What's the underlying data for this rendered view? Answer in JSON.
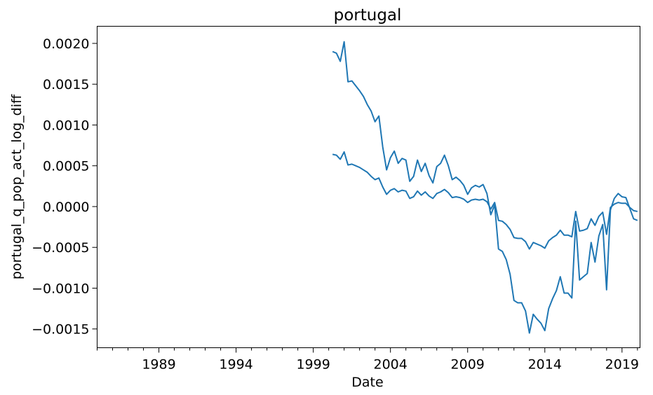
{
  "chart_data": {
    "type": "line",
    "title": "portugal",
    "xlabel": "Date",
    "ylabel": "portugal_q_pop_act_log_diff",
    "xlim": [
      "1985-01-01",
      "2020-03-01"
    ],
    "ylim": [
      -0.00173,
      0.00221
    ],
    "x_ticks": [
      "1989",
      "1994",
      "1999",
      "2004",
      "2009",
      "2014",
      "2019"
    ],
    "y_ticks": [
      "0.0020",
      "0.0015",
      "0.0010",
      "0.0005",
      "0.0000",
      "−0.0005",
      "−0.0010",
      "−0.0015"
    ],
    "y_tick_values": [
      0.002,
      0.0015,
      0.001,
      0.0005,
      0.0,
      -0.0005,
      -0.001,
      -0.0015
    ],
    "grid": false,
    "series": [
      {
        "color": "#1f77b4",
        "x": [
          "2000-04",
          "2000-07",
          "2000-10",
          "2001-01",
          "2001-04",
          "2001-07",
          "2001-10",
          "2002-01",
          "2002-04",
          "2002-07",
          "2002-10",
          "2003-01",
          "2003-04",
          "2003-07",
          "2003-10",
          "2004-01",
          "2004-04",
          "2004-07",
          "2004-10",
          "2005-01",
          "2005-04",
          "2005-07",
          "2005-10",
          "2006-01",
          "2006-04",
          "2006-07",
          "2006-10",
          "2007-01",
          "2007-04",
          "2007-07",
          "2007-10",
          "2008-01",
          "2008-04",
          "2008-07",
          "2008-10",
          "2009-01",
          "2009-04",
          "2009-07",
          "2009-10",
          "2010-01",
          "2010-04",
          "2010-07",
          "2010-10",
          "2011-01",
          "2011-04",
          "2011-07",
          "2011-10",
          "2012-01",
          "2012-04",
          "2012-07",
          "2012-10",
          "2013-01",
          "2013-04",
          "2013-07",
          "2013-10",
          "2014-01",
          "2014-04",
          "2014-07",
          "2014-10",
          "2015-01",
          "2015-04",
          "2015-07",
          "2015-10",
          "2016-01",
          "2016-04",
          "2016-07",
          "2016-10",
          "2017-01",
          "2017-04",
          "2017-07",
          "2017-10",
          "2018-01",
          "2018-04",
          "2018-07",
          "2018-10",
          "2019-01",
          "2019-04",
          "2019-07",
          "2019-10",
          "2020-01"
        ],
        "values": [
          0.0019,
          0.00188,
          0.00178,
          0.00202,
          0.00153,
          0.00154,
          0.00148,
          0.00142,
          0.00135,
          0.00125,
          0.00117,
          0.00104,
          0.00111,
          0.00073,
          0.00045,
          0.0006,
          0.00068,
          0.00053,
          0.00059,
          0.00057,
          0.00031,
          0.00037,
          0.00057,
          0.00043,
          0.00053,
          0.00038,
          0.00029,
          0.00049,
          0.00053,
          0.00063,
          0.0005,
          0.00033,
          0.00036,
          0.00032,
          0.00026,
          0.00015,
          0.00023,
          0.00026,
          0.00024,
          0.00027,
          0.00016,
          -0.0001,
          2e-05,
          -0.00052,
          -0.00055,
          -0.00065,
          -0.00083,
          -0.00115,
          -0.00118,
          -0.00118,
          -0.00128,
          -0.00155,
          -0.00132,
          -0.00138,
          -0.00143,
          -0.00152,
          -0.00125,
          -0.00113,
          -0.00103,
          -0.00086,
          -0.00106,
          -0.00106,
          -0.00112,
          -0.00018,
          -0.0009,
          -0.00086,
          -0.00082,
          -0.00044,
          -0.00068,
          -0.00036,
          -0.00022,
          -0.00102,
          -4e-05,
          0.0001,
          0.00016,
          0.00012,
          0.00011,
          -2e-05,
          -0.00015,
          -0.00017
        ]
      },
      {
        "color": "#1f77b4",
        "x": [
          "2000-04",
          "2000-07",
          "2000-10",
          "2001-01",
          "2001-04",
          "2001-07",
          "2001-10",
          "2002-01",
          "2002-04",
          "2002-07",
          "2002-10",
          "2003-01",
          "2003-04",
          "2003-07",
          "2003-10",
          "2004-01",
          "2004-04",
          "2004-07",
          "2004-10",
          "2005-01",
          "2005-04",
          "2005-07",
          "2005-10",
          "2006-01",
          "2006-04",
          "2006-07",
          "2006-10",
          "2007-01",
          "2007-04",
          "2007-07",
          "2007-10",
          "2008-01",
          "2008-04",
          "2008-07",
          "2008-10",
          "2009-01",
          "2009-04",
          "2009-07",
          "2009-10",
          "2010-01",
          "2010-04",
          "2010-07",
          "2010-10",
          "2011-01",
          "2011-04",
          "2011-07",
          "2011-10",
          "2012-01",
          "2012-04",
          "2012-07",
          "2012-10",
          "2013-01",
          "2013-04",
          "2013-07",
          "2013-10",
          "2014-01",
          "2014-04",
          "2014-07",
          "2014-10",
          "2015-01",
          "2015-04",
          "2015-07",
          "2015-10",
          "2016-01",
          "2016-04",
          "2016-07",
          "2016-10",
          "2017-01",
          "2017-04",
          "2017-07",
          "2017-10",
          "2018-01",
          "2018-04",
          "2018-07",
          "2018-10",
          "2019-01",
          "2019-04",
          "2019-07",
          "2019-10",
          "2020-01"
        ],
        "values": [
          0.00064,
          0.00063,
          0.00058,
          0.00067,
          0.00051,
          0.00052,
          0.0005,
          0.00048,
          0.00045,
          0.00042,
          0.00037,
          0.00033,
          0.00035,
          0.00024,
          0.00015,
          0.0002,
          0.00022,
          0.00018,
          0.0002,
          0.00019,
          0.0001,
          0.00012,
          0.00019,
          0.00014,
          0.00018,
          0.00013,
          0.0001,
          0.00016,
          0.00018,
          0.00021,
          0.00017,
          0.00011,
          0.00012,
          0.00011,
          9e-05,
          5e-05,
          8e-05,
          9e-05,
          8e-05,
          9e-05,
          6e-05,
          -3e-05,
          5e-05,
          -0.00017,
          -0.00018,
          -0.00022,
          -0.00028,
          -0.00038,
          -0.00039,
          -0.00039,
          -0.00043,
          -0.00052,
          -0.00044,
          -0.00046,
          -0.00048,
          -0.00051,
          -0.00042,
          -0.00038,
          -0.00035,
          -0.00029,
          -0.00035,
          -0.00035,
          -0.00037,
          -6e-05,
          -0.0003,
          -0.00029,
          -0.00027,
          -0.00015,
          -0.00023,
          -0.00012,
          -7e-05,
          -0.00034,
          -1e-05,
          3e-05,
          5e-05,
          4e-05,
          4e-05,
          -1e-05,
          -5e-05,
          -6e-05
        ]
      }
    ]
  }
}
